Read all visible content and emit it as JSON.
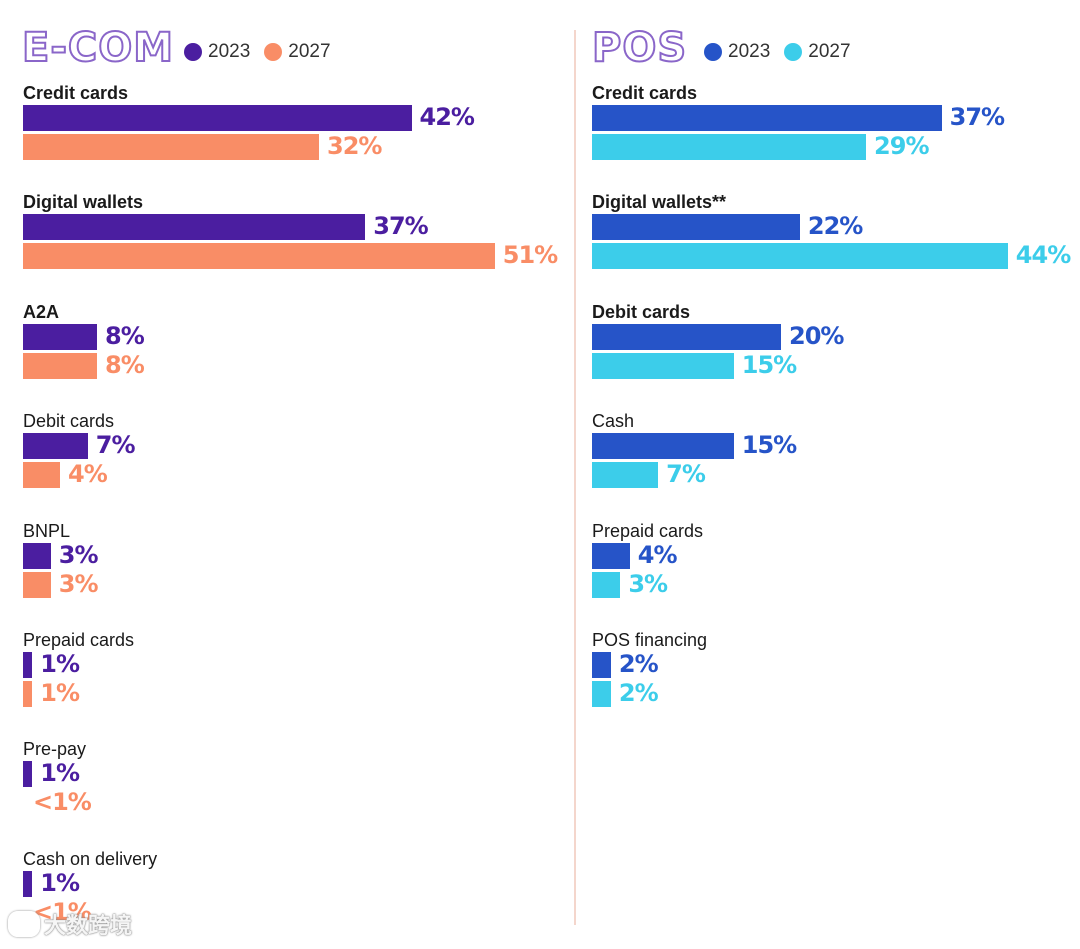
{
  "chart_data": [
    {
      "type": "bar",
      "orientation": "horizontal",
      "title": "E-COM",
      "legend": [
        "2023",
        "2027"
      ],
      "categories": [
        "Credit cards",
        "Digital wallets",
        "A2A",
        "Debit cards",
        "BNPL",
        "Prepaid cards",
        "Pre-pay",
        "Cash on delivery"
      ],
      "bold_categories": [
        "Credit cards",
        "Digital wallets",
        "A2A"
      ],
      "series": [
        {
          "name": "2023",
          "color": "#4b1ea0",
          "values": [
            42,
            37,
            8,
            7,
            3,
            1,
            1,
            1
          ],
          "labels": [
            "42%",
            "37%",
            "8%",
            "7%",
            "3%",
            "1%",
            "1%",
            "1%"
          ]
        },
        {
          "name": "2027",
          "color": "#f98d66",
          "values": [
            32,
            51,
            8,
            4,
            3,
            1,
            0.5,
            0.5
          ],
          "labels": [
            "32%",
            "51%",
            "8%",
            "4%",
            "3%",
            "1%",
            "<1%",
            "<1%"
          ]
        }
      ]
    },
    {
      "type": "bar",
      "orientation": "horizontal",
      "title": "POS",
      "legend": [
        "2023",
        "2027"
      ],
      "categories": [
        "Credit cards",
        "Digital wallets**",
        "Debit cards",
        "Cash",
        "Prepaid cards",
        "POS financing"
      ],
      "bold_categories": [
        "Credit cards",
        "Digital wallets**",
        "Debit cards"
      ],
      "series": [
        {
          "name": "2023",
          "color": "#2654c8",
          "values": [
            37,
            22,
            20,
            15,
            4,
            2
          ],
          "labels": [
            "37%",
            "22%",
            "20%",
            "15%",
            "4%",
            "2%"
          ]
        },
        {
          "name": "2027",
          "color": "#3ccdea",
          "values": [
            29,
            44,
            15,
            7,
            3,
            2
          ],
          "labels": [
            "29%",
            "44%",
            "15%",
            "7%",
            "3%",
            "2%"
          ]
        }
      ]
    }
  ],
  "watermark": "大数跨境"
}
